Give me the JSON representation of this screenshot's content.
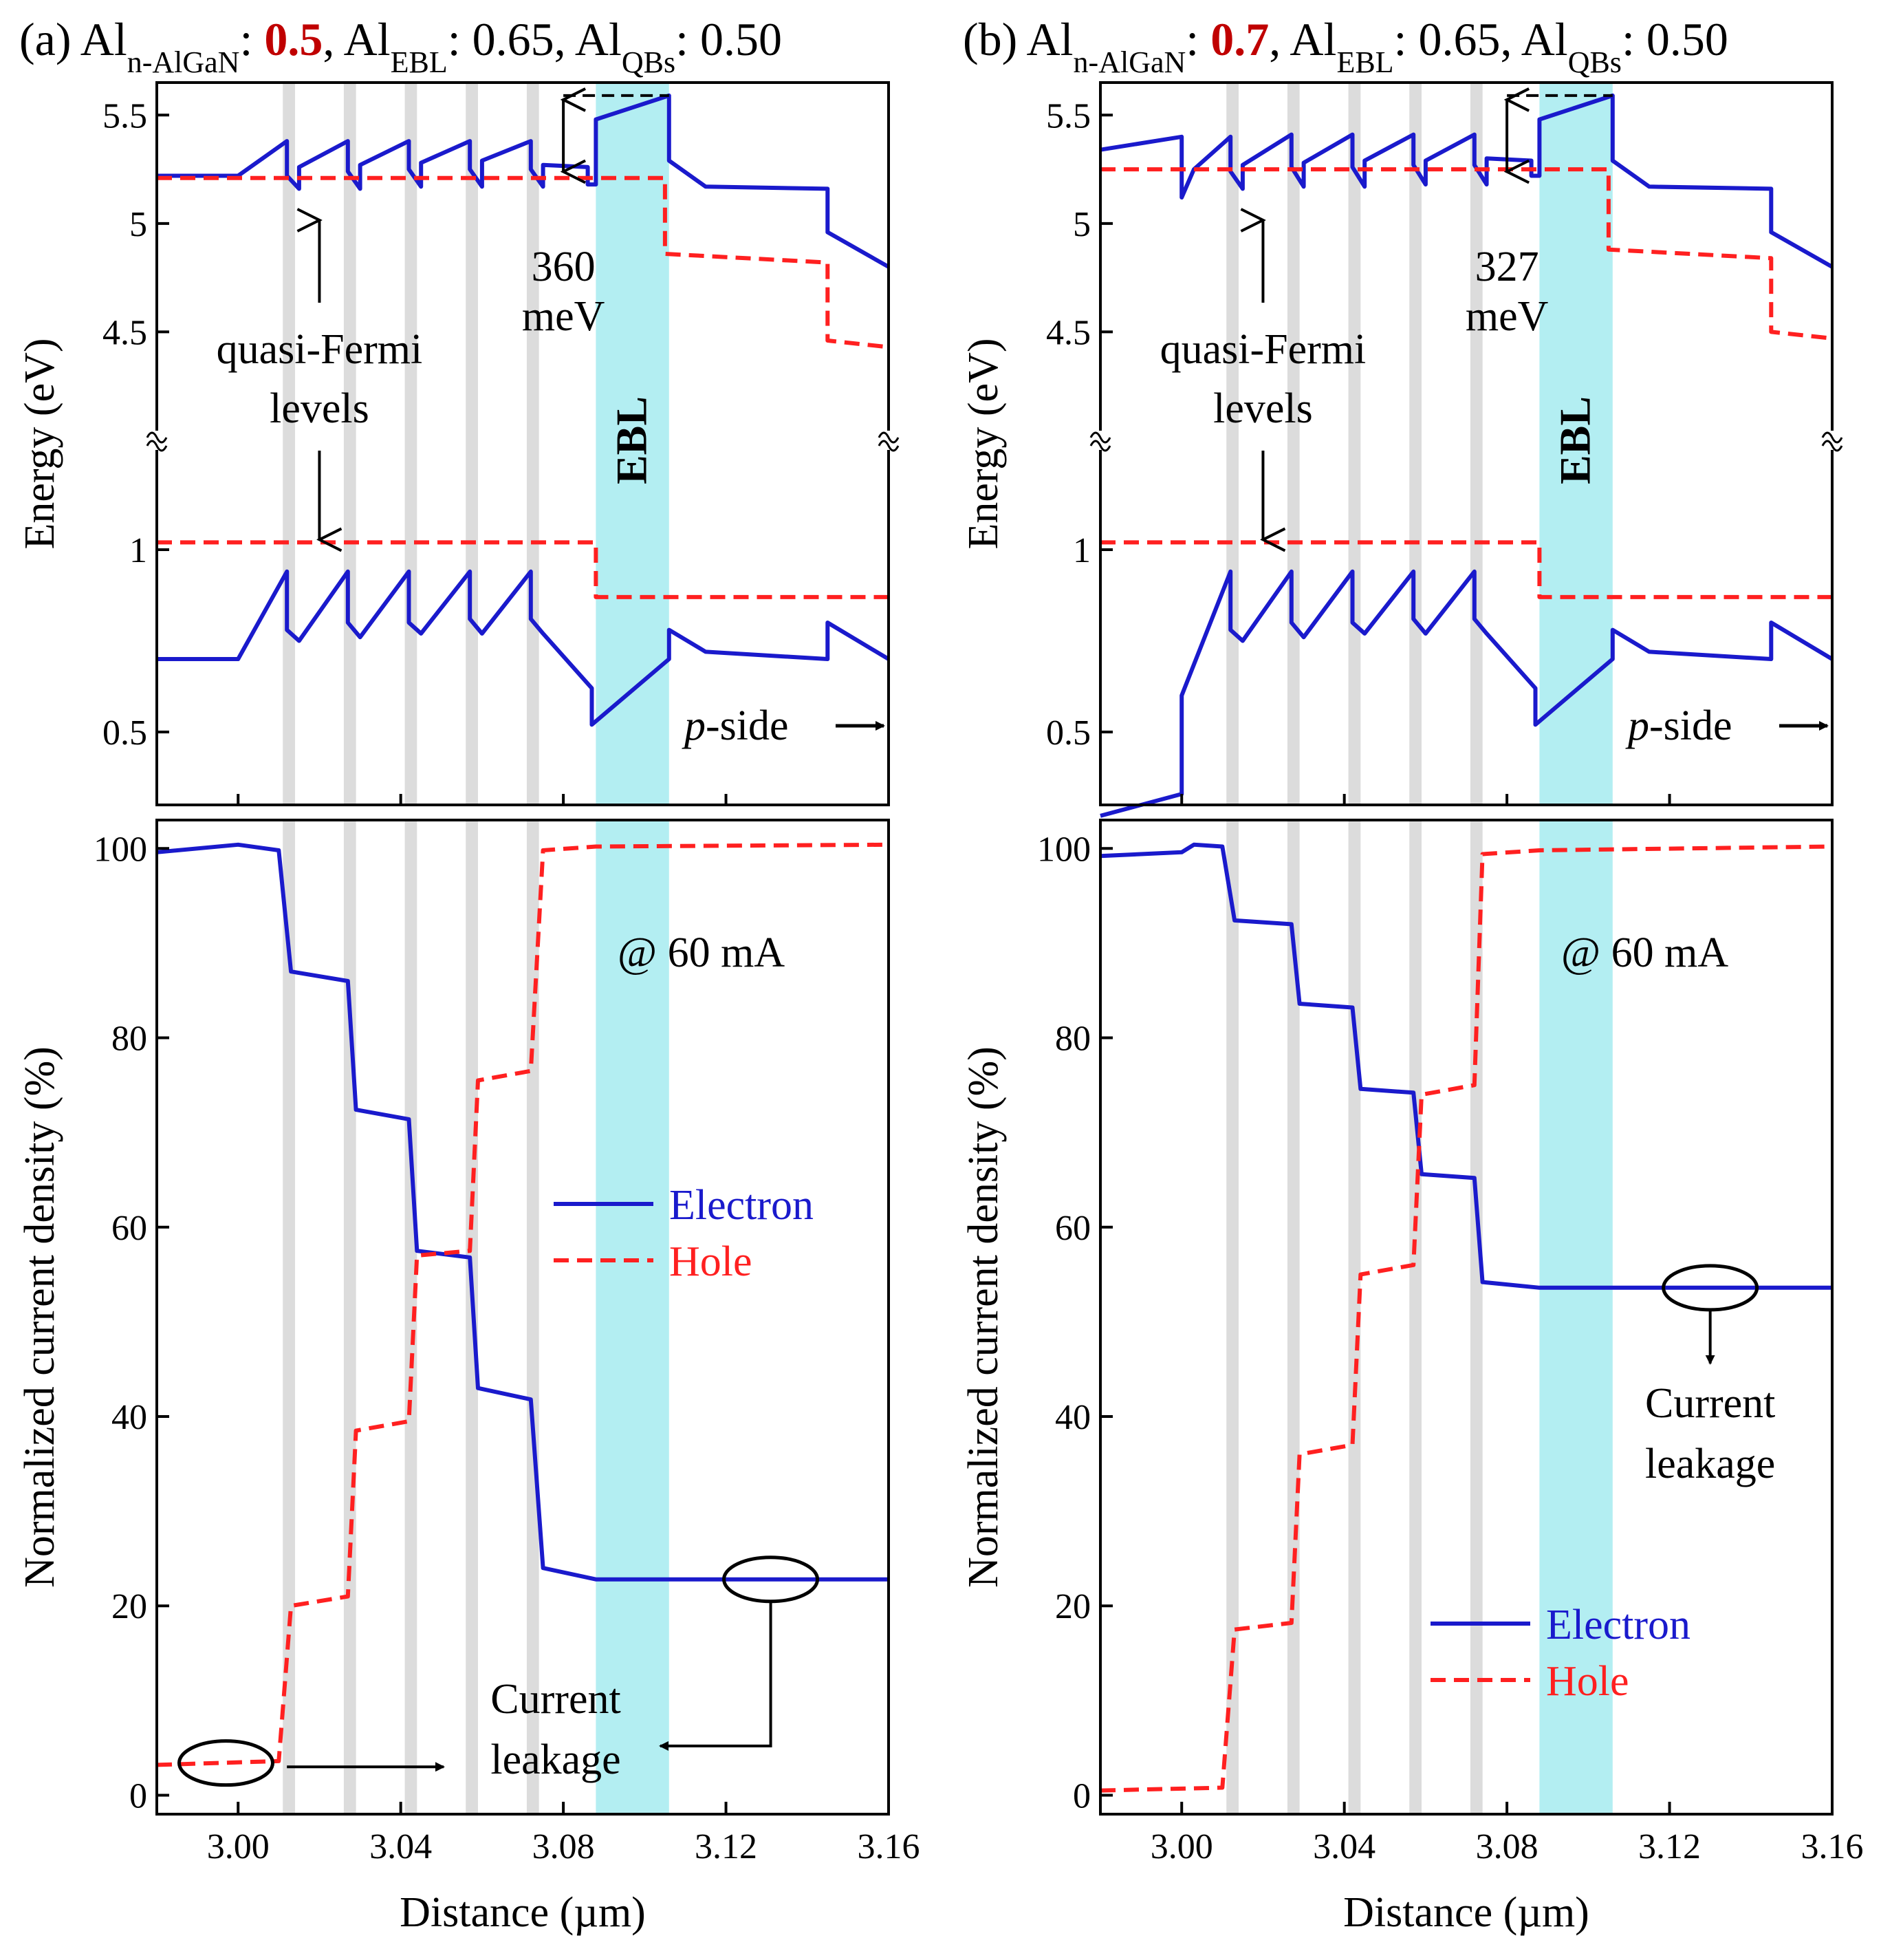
{
  "figure_caption": "Two-panel band diagram and normalized current density comparison for n-AlGaN Al composition 0.5 vs 0.7",
  "chart_data": [
    {
      "panel": "a",
      "label": "(a)",
      "title_parts": {
        "prefix": "Al",
        "sub1": "n-AlGaN",
        "colon1": ": ",
        "highlight": "0.5",
        "mid": ", Al",
        "sub2": "EBL",
        "mid2": ": 0.65, Al",
        "sub3": "QBs",
        "tail": ": 0.50"
      },
      "highlight_color": "#c00000",
      "energy_plot": {
        "type": "line",
        "ylabel": "Energy (eV)",
        "xlim": [
          2.98,
          3.16
        ],
        "upper_ylim": [
          4.0,
          5.65
        ],
        "lower_ylim": [
          0.3,
          1.3
        ],
        "upper_ticks": [
          "4.5",
          "5",
          "5.5"
        ],
        "upper_tick_values": [
          4.5,
          5.0,
          5.5
        ],
        "lower_ticks": [
          "0.5",
          "1"
        ],
        "lower_tick_values": [
          0.5,
          1.0
        ],
        "conduction_band": [
          [
            2.98,
            5.22
          ],
          [
            3.0,
            5.22
          ],
          [
            3.012,
            5.38
          ],
          [
            3.012,
            5.22
          ],
          [
            3.015,
            5.16
          ],
          [
            3.015,
            5.26
          ],
          [
            3.027,
            5.38
          ],
          [
            3.027,
            5.24
          ],
          [
            3.03,
            5.16
          ],
          [
            3.03,
            5.27
          ],
          [
            3.042,
            5.38
          ],
          [
            3.042,
            5.25
          ],
          [
            3.045,
            5.17
          ],
          [
            3.045,
            5.28
          ],
          [
            3.057,
            5.38
          ],
          [
            3.057,
            5.25
          ],
          [
            3.06,
            5.17
          ],
          [
            3.06,
            5.29
          ],
          [
            3.072,
            5.38
          ],
          [
            3.072,
            5.25
          ],
          [
            3.075,
            5.17
          ],
          [
            3.075,
            5.27
          ],
          [
            3.086,
            5.26
          ],
          [
            3.086,
            5.18
          ],
          [
            3.088,
            5.18
          ],
          [
            3.088,
            5.48
          ],
          [
            3.106,
            5.59
          ],
          [
            3.106,
            5.29
          ],
          [
            3.115,
            5.17
          ],
          [
            3.145,
            5.16
          ],
          [
            3.145,
            4.96
          ],
          [
            3.16,
            4.8
          ]
        ],
        "electron_qfl": [
          [
            2.98,
            5.21
          ],
          [
            3.105,
            5.21
          ],
          [
            3.105,
            4.86
          ],
          [
            3.145,
            4.82
          ],
          [
            3.145,
            4.46
          ],
          [
            3.16,
            4.43
          ]
        ],
        "valence_band": [
          [
            2.98,
            0.7
          ],
          [
            3.0,
            0.7
          ],
          [
            3.012,
            0.94
          ],
          [
            3.012,
            0.78
          ],
          [
            3.015,
            0.75
          ],
          [
            3.027,
            0.94
          ],
          [
            3.027,
            0.8
          ],
          [
            3.03,
            0.76
          ],
          [
            3.042,
            0.94
          ],
          [
            3.042,
            0.8
          ],
          [
            3.045,
            0.77
          ],
          [
            3.057,
            0.94
          ],
          [
            3.057,
            0.81
          ],
          [
            3.06,
            0.77
          ],
          [
            3.072,
            0.94
          ],
          [
            3.072,
            0.81
          ],
          [
            3.075,
            0.77
          ],
          [
            3.087,
            0.62
          ],
          [
            3.087,
            0.52
          ],
          [
            3.106,
            0.7
          ],
          [
            3.106,
            0.78
          ],
          [
            3.115,
            0.72
          ],
          [
            3.145,
            0.7
          ],
          [
            3.145,
            0.8
          ],
          [
            3.16,
            0.7
          ]
        ],
        "hole_qfl": [
          [
            2.98,
            1.02
          ],
          [
            3.088,
            1.02
          ],
          [
            3.088,
            0.87
          ],
          [
            3.16,
            0.87
          ]
        ],
        "barrier_label": {
          "value": "360",
          "unit": "meV"
        },
        "annotation_qfl": "quasi-Fermi",
        "annotation_qfl2": "levels",
        "ebl_label": "EBL",
        "p_side_italic": "p",
        "p_side_rest": "-side"
      },
      "current_plot": {
        "type": "line",
        "ylabel": "Normalized current density (%)",
        "xlabel": "Distance (µm)",
        "xlim": [
          2.98,
          3.16
        ],
        "ylim": [
          -2,
          103
        ],
        "yticks": [
          "0",
          "20",
          "40",
          "60",
          "80",
          "100"
        ],
        "ytick_values": [
          0,
          20,
          40,
          60,
          80,
          100
        ],
        "xticks": [
          "3.00",
          "3.04",
          "3.08",
          "3.12",
          "3.16"
        ],
        "xtick_values": [
          3.0,
          3.04,
          3.08,
          3.12,
          3.16
        ],
        "electron": [
          [
            2.98,
            99.6
          ],
          [
            3.0,
            100.4
          ],
          [
            3.01,
            99.8
          ],
          [
            3.013,
            87
          ],
          [
            3.027,
            86
          ],
          [
            3.029,
            72.4
          ],
          [
            3.042,
            71.4
          ],
          [
            3.044,
            57.5
          ],
          [
            3.057,
            56.8
          ],
          [
            3.059,
            43
          ],
          [
            3.072,
            41.8
          ],
          [
            3.075,
            24
          ],
          [
            3.088,
            22.8
          ],
          [
            3.16,
            22.8
          ]
        ],
        "hole": [
          [
            2.98,
            3.2
          ],
          [
            3.01,
            3.6
          ],
          [
            3.013,
            20
          ],
          [
            3.027,
            21
          ],
          [
            3.029,
            38.5
          ],
          [
            3.042,
            39.5
          ],
          [
            3.044,
            57
          ],
          [
            3.057,
            57.5
          ],
          [
            3.059,
            75.5
          ],
          [
            3.072,
            76.5
          ],
          [
            3.075,
            99.8
          ],
          [
            3.088,
            100.2
          ],
          [
            3.16,
            100.4
          ]
        ],
        "legend": [
          "Electron",
          "Hole"
        ],
        "annotation_current": "@ 60 mA",
        "leakage_line1": "Current",
        "leakage_line2": "leakage"
      }
    },
    {
      "panel": "b",
      "label": "(b)",
      "title_parts": {
        "prefix": "Al",
        "sub1": "n-AlGaN",
        "colon1": ": ",
        "highlight": "0.7",
        "mid": ", Al",
        "sub2": "EBL",
        "mid2": ": 0.65, Al",
        "sub3": "QBs",
        "tail": ": 0.50"
      },
      "highlight_color": "#c00000",
      "energy_plot": {
        "type": "line",
        "ylabel": "Energy (eV)",
        "xlim": [
          2.98,
          3.16
        ],
        "upper_ylim": [
          4.0,
          5.65
        ],
        "lower_ylim": [
          0.3,
          1.3
        ],
        "upper_ticks": [
          "4.5",
          "5",
          "5.5"
        ],
        "upper_tick_values": [
          4.5,
          5.0,
          5.5
        ],
        "lower_ticks": [
          "0.5",
          "1"
        ],
        "lower_tick_values": [
          0.5,
          1.0
        ],
        "conduction_band": [
          [
            2.98,
            5.34
          ],
          [
            3.0,
            5.4
          ],
          [
            3.0,
            5.12
          ],
          [
            3.003,
            5.25
          ],
          [
            3.012,
            5.4
          ],
          [
            3.012,
            5.24
          ],
          [
            3.015,
            5.16
          ],
          [
            3.015,
            5.27
          ],
          [
            3.027,
            5.41
          ],
          [
            3.027,
            5.26
          ],
          [
            3.03,
            5.17
          ],
          [
            3.03,
            5.28
          ],
          [
            3.042,
            5.41
          ],
          [
            3.042,
            5.26
          ],
          [
            3.045,
            5.17
          ],
          [
            3.045,
            5.29
          ],
          [
            3.057,
            5.41
          ],
          [
            3.057,
            5.27
          ],
          [
            3.06,
            5.18
          ],
          [
            3.06,
            5.29
          ],
          [
            3.072,
            5.41
          ],
          [
            3.072,
            5.27
          ],
          [
            3.075,
            5.18
          ],
          [
            3.075,
            5.3
          ],
          [
            3.086,
            5.29
          ],
          [
            3.086,
            5.22
          ],
          [
            3.088,
            5.22
          ],
          [
            3.088,
            5.48
          ],
          [
            3.106,
            5.59
          ],
          [
            3.106,
            5.29
          ],
          [
            3.115,
            5.17
          ],
          [
            3.145,
            5.16
          ],
          [
            3.145,
            4.96
          ],
          [
            3.16,
            4.8
          ]
        ],
        "electron_qfl": [
          [
            2.98,
            5.25
          ],
          [
            3.105,
            5.25
          ],
          [
            3.105,
            4.88
          ],
          [
            3.145,
            4.84
          ],
          [
            3.145,
            4.5
          ],
          [
            3.16,
            4.47
          ]
        ],
        "valence_band": [
          [
            2.98,
            0.27
          ],
          [
            3.0,
            0.33
          ],
          [
            3.0,
            0.6
          ],
          [
            3.012,
            0.94
          ],
          [
            3.012,
            0.78
          ],
          [
            3.015,
            0.75
          ],
          [
            3.027,
            0.94
          ],
          [
            3.027,
            0.8
          ],
          [
            3.03,
            0.76
          ],
          [
            3.042,
            0.94
          ],
          [
            3.042,
            0.8
          ],
          [
            3.045,
            0.77
          ],
          [
            3.057,
            0.94
          ],
          [
            3.057,
            0.81
          ],
          [
            3.06,
            0.77
          ],
          [
            3.072,
            0.94
          ],
          [
            3.072,
            0.81
          ],
          [
            3.075,
            0.77
          ],
          [
            3.087,
            0.62
          ],
          [
            3.087,
            0.52
          ],
          [
            3.106,
            0.7
          ],
          [
            3.106,
            0.78
          ],
          [
            3.115,
            0.72
          ],
          [
            3.145,
            0.7
          ],
          [
            3.145,
            0.8
          ],
          [
            3.16,
            0.7
          ]
        ],
        "hole_qfl": [
          [
            2.98,
            1.02
          ],
          [
            3.088,
            1.02
          ],
          [
            3.088,
            0.87
          ],
          [
            3.16,
            0.87
          ]
        ],
        "barrier_label": {
          "value": "327",
          "unit": "meV"
        },
        "annotation_qfl": "quasi-Fermi",
        "annotation_qfl2": "levels",
        "ebl_label": "EBL",
        "p_side_italic": "p",
        "p_side_rest": "-side"
      },
      "current_plot": {
        "type": "line",
        "ylabel": "Normalized current density (%)",
        "xlabel": "Distance (µm)",
        "xlim": [
          2.98,
          3.16
        ],
        "ylim": [
          -2,
          103
        ],
        "yticks": [
          "0",
          "20",
          "40",
          "60",
          "80",
          "100"
        ],
        "ytick_values": [
          0,
          20,
          40,
          60,
          80,
          100
        ],
        "xticks": [
          "3.00",
          "3.04",
          "3.08",
          "3.12",
          "3.16"
        ],
        "xtick_values": [
          3.0,
          3.04,
          3.08,
          3.12,
          3.16
        ],
        "electron": [
          [
            2.98,
            99.2
          ],
          [
            3.0,
            99.6
          ],
          [
            3.003,
            100.4
          ],
          [
            3.01,
            100.2
          ],
          [
            3.013,
            92.4
          ],
          [
            3.027,
            92
          ],
          [
            3.029,
            83.6
          ],
          [
            3.042,
            83.2
          ],
          [
            3.044,
            74.6
          ],
          [
            3.057,
            74.2
          ],
          [
            3.059,
            65.6
          ],
          [
            3.072,
            65.2
          ],
          [
            3.074,
            54.2
          ],
          [
            3.088,
            53.6
          ],
          [
            3.16,
            53.6
          ]
        ],
        "hole": [
          [
            2.98,
            0.5
          ],
          [
            3.01,
            0.8
          ],
          [
            3.013,
            17.5
          ],
          [
            3.027,
            18.2
          ],
          [
            3.029,
            36
          ],
          [
            3.042,
            37
          ],
          [
            3.044,
            55
          ],
          [
            3.057,
            56
          ],
          [
            3.059,
            74
          ],
          [
            3.072,
            75
          ],
          [
            3.074,
            99.4
          ],
          [
            3.088,
            99.8
          ],
          [
            3.16,
            100.2
          ]
        ],
        "legend": [
          "Electron",
          "Hole"
        ],
        "annotation_current": "@ 60 mA",
        "leakage_line1": "Current",
        "leakage_line2": "leakage"
      }
    }
  ],
  "style": {
    "electron_color": "#1a1acc",
    "hole_color": "#ff2020",
    "ebl_fill": "#b3eef2",
    "qw_fill": "#dcdcdc",
    "axis_color": "#000000"
  },
  "structure": {
    "qw_x": [
      3.0125,
      3.0275,
      3.0425,
      3.0575,
      3.0725
    ],
    "ebl_range": [
      3.088,
      3.106
    ]
  }
}
